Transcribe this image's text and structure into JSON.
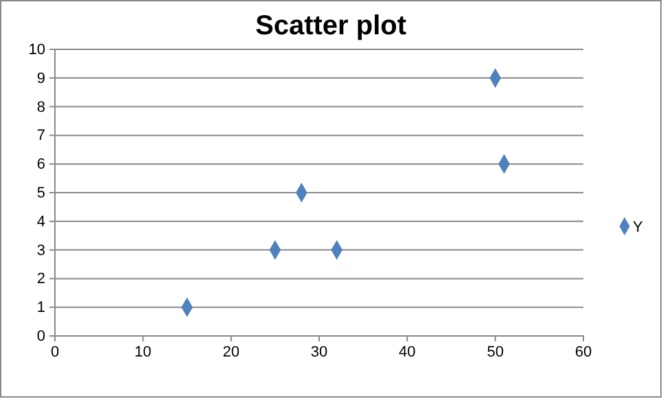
{
  "chart_data": {
    "type": "scatter",
    "title": "Scatter plot",
    "x": [
      15,
      25,
      28,
      32,
      50,
      51
    ],
    "series": [
      {
        "name": "Y",
        "color": "#4f81bd",
        "values": [
          1,
          3,
          5,
          3,
          9,
          6
        ]
      }
    ],
    "xlim": [
      0,
      60
    ],
    "xticks": [
      0,
      10,
      20,
      30,
      40,
      50,
      60
    ],
    "ylim": [
      0,
      10
    ],
    "yticks": [
      0,
      1,
      2,
      3,
      4,
      5,
      6,
      7,
      8,
      9,
      10
    ],
    "grid": "y",
    "legend": "right",
    "marker": "diamond"
  }
}
